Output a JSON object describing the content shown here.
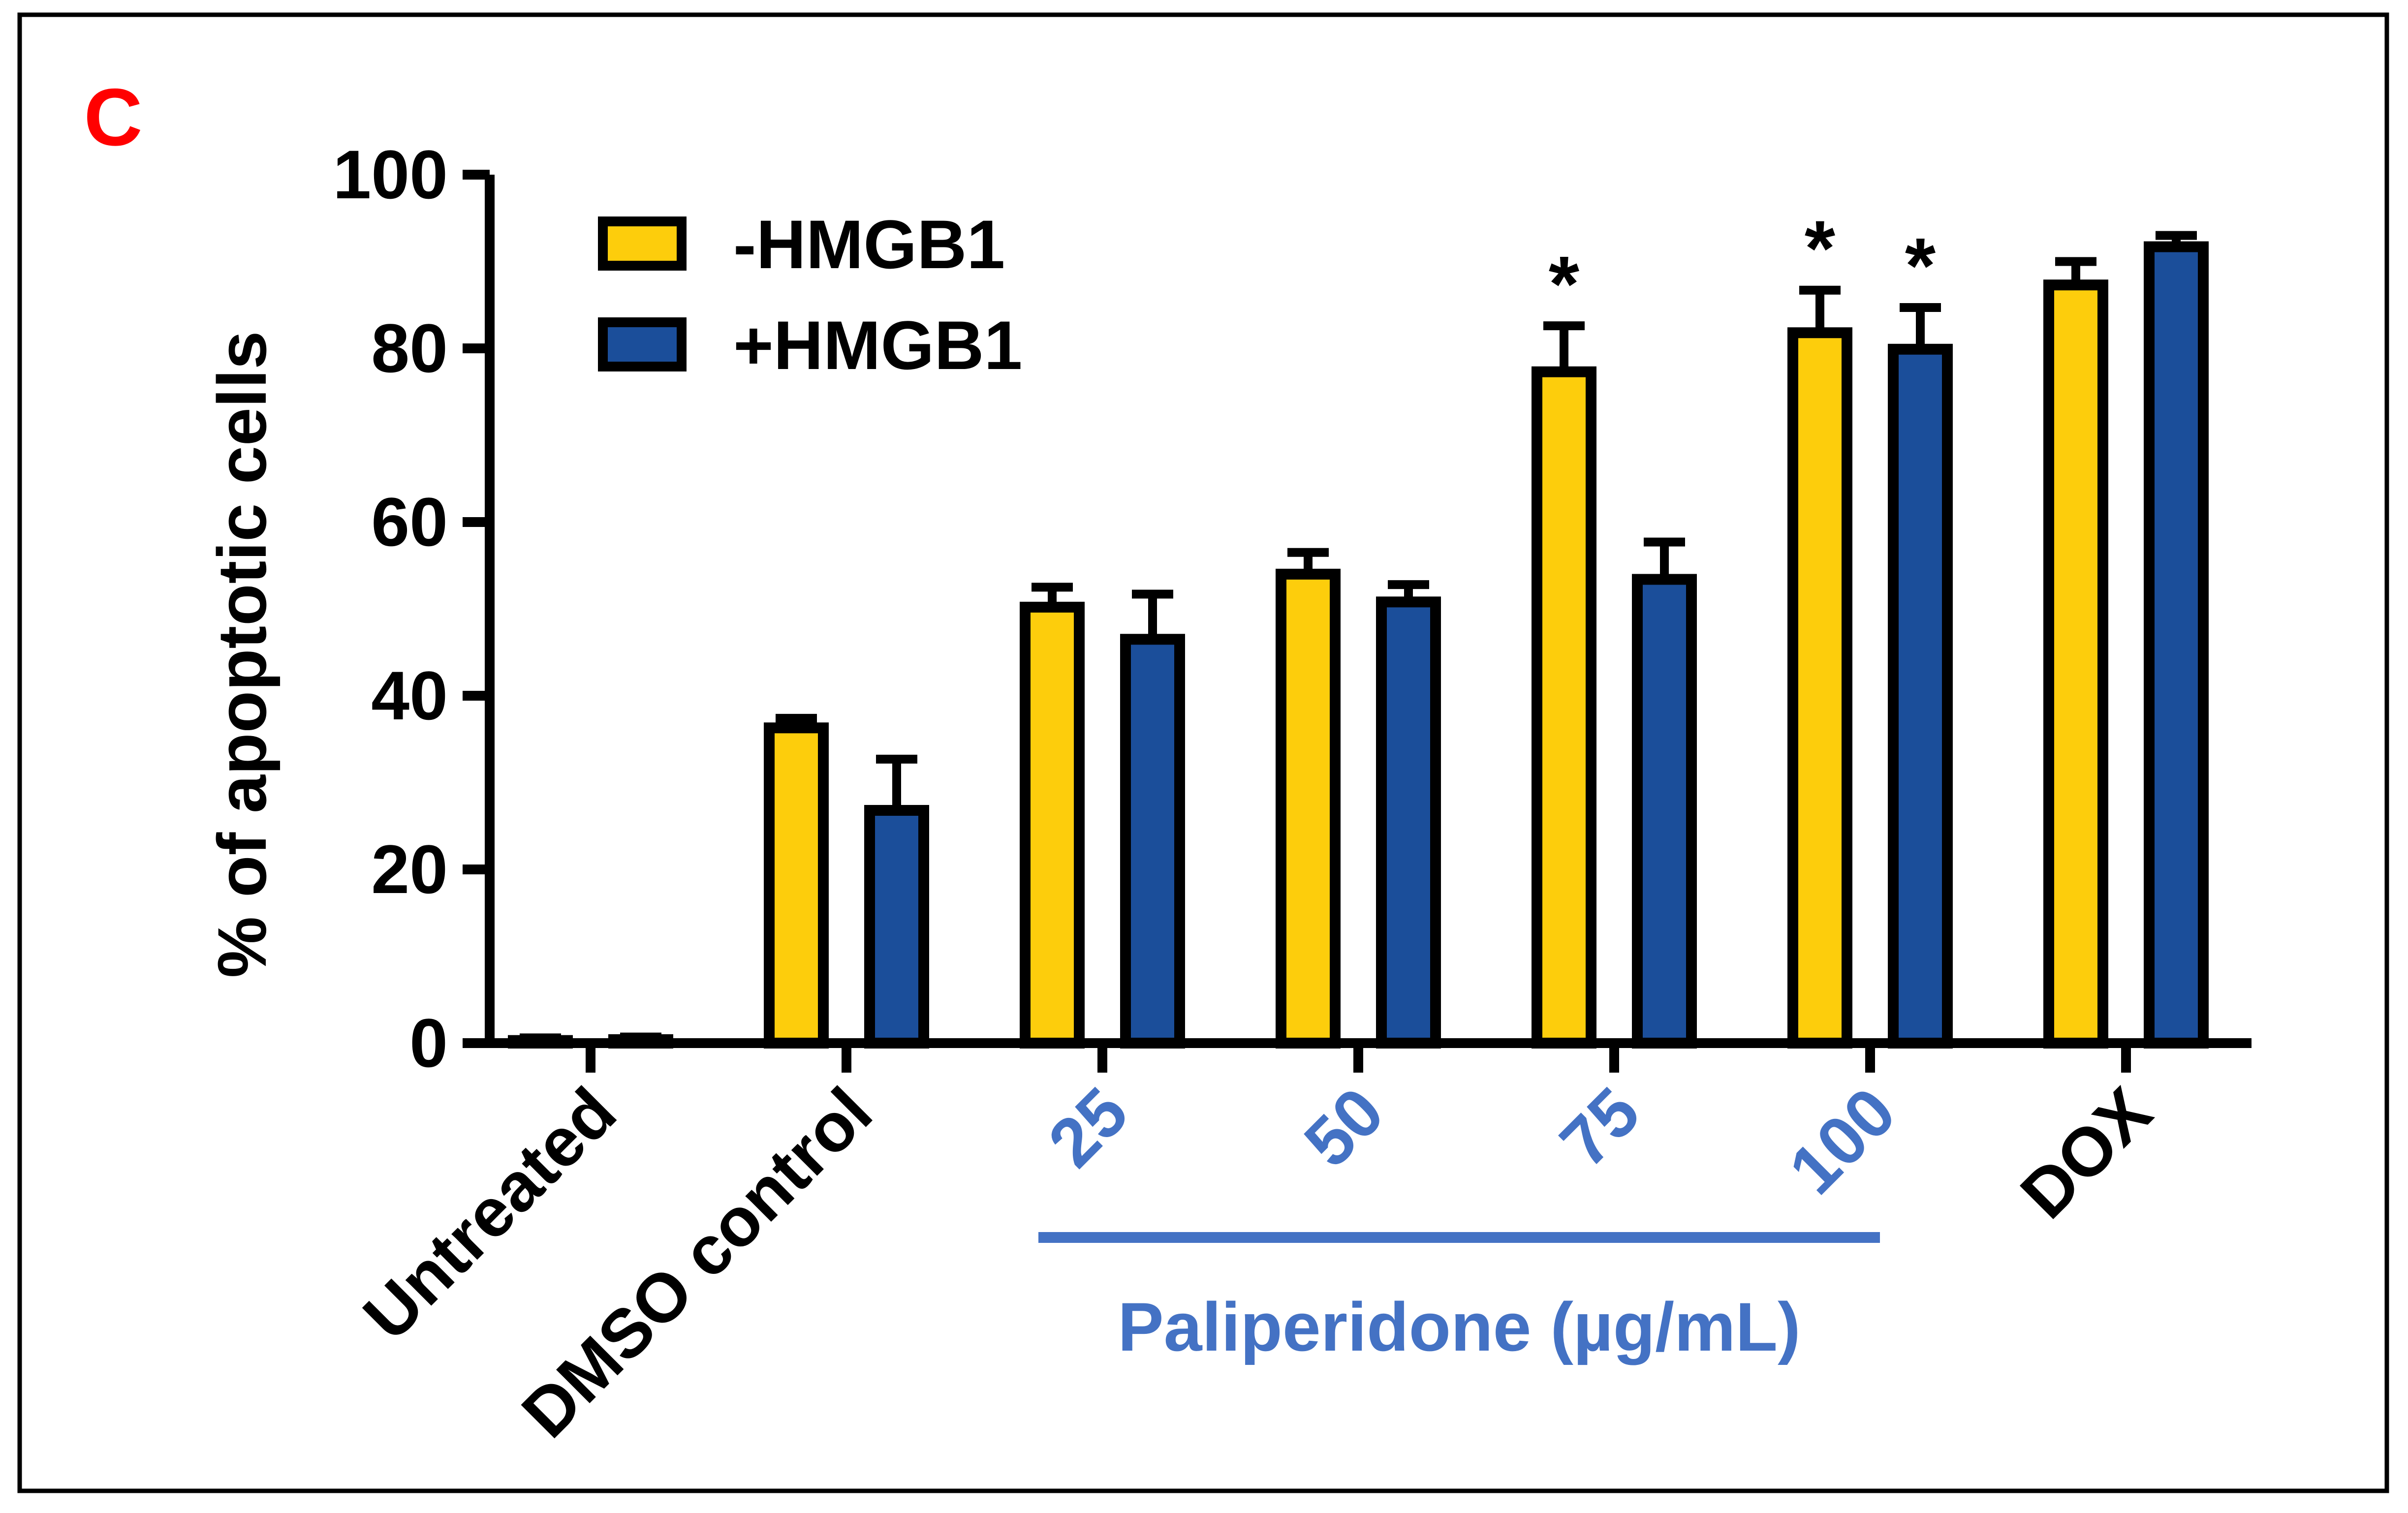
{
  "panel_label": "C",
  "colors": {
    "series_minus": "#FDCD0C",
    "series_plus": "#1B4E9A",
    "highlight": "#4472C4",
    "panel_label": "#FF0000",
    "axis": "#000000"
  },
  "chart_data": {
    "type": "bar",
    "title": "",
    "xlabel": "",
    "ylabel": "% of apoptotic cells",
    "ylim": [
      0,
      100
    ],
    "yticks": [
      0,
      20,
      40,
      60,
      80,
      100
    ],
    "legend_position": "top-left",
    "categories": [
      {
        "label": "Untreated",
        "highlight": false
      },
      {
        "label": "DMSO control",
        "highlight": false
      },
      {
        "label": "25",
        "highlight": true
      },
      {
        "label": "50",
        "highlight": true
      },
      {
        "label": "75",
        "highlight": true
      },
      {
        "label": "100",
        "highlight": true
      },
      {
        "label": "DOX",
        "highlight": false
      }
    ],
    "series": [
      {
        "name": "-HMGB1",
        "color": "#FDCD0C",
        "values": [
          0.3,
          36.3,
          50.2,
          54.0,
          77.3,
          81.8,
          87.3
        ],
        "errors": [
          0.3,
          1.1,
          2.3,
          2.5,
          5.3,
          4.9,
          2.7
        ],
        "significant": [
          false,
          false,
          false,
          false,
          true,
          true,
          false
        ]
      },
      {
        "name": "+HMGB1",
        "color": "#1B4E9A",
        "values": [
          0.4,
          26.8,
          46.5,
          50.8,
          53.4,
          79.9,
          91.7
        ],
        "errors": [
          0.3,
          5.9,
          5.2,
          2.0,
          4.3,
          4.8,
          1.3
        ],
        "significant": [
          false,
          false,
          false,
          false,
          false,
          true,
          false
        ]
      }
    ],
    "significance_marker": "*",
    "group_bracket": {
      "label": "Paliperidone (µg/mL)",
      "from_category": 2,
      "to_category": 5
    }
  }
}
